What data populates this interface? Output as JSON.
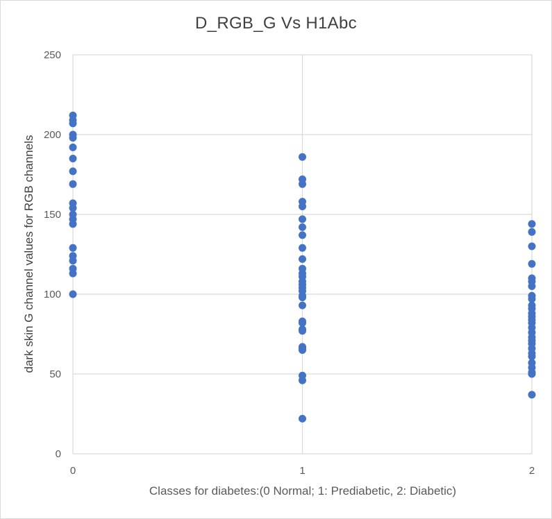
{
  "chart_data": {
    "type": "scatter",
    "title": "D_RGB_G Vs H1Abc",
    "xlabel": "Classes for diabetes:(0 Normal; 1: Prediabetic, 2: Diabetic)",
    "ylabel": "dark skin G channel values for RGB channels",
    "xlim": [
      0,
      2
    ],
    "ylim": [
      0,
      250
    ],
    "x_ticks": [
      "0",
      "1",
      "2"
    ],
    "y_ticks": [
      "0",
      "50",
      "100",
      "150",
      "200",
      "250"
    ],
    "grid": true,
    "legend": "none",
    "marker_color": "#4472c4",
    "series": [
      {
        "points": [
          [
            0,
            212
          ],
          [
            0,
            209
          ],
          [
            0,
            207
          ],
          [
            0,
            200
          ],
          [
            0,
            198
          ],
          [
            0,
            192
          ],
          [
            0,
            185
          ],
          [
            0,
            177
          ],
          [
            0,
            169
          ],
          [
            0,
            157
          ],
          [
            0,
            154
          ],
          [
            0,
            150
          ],
          [
            0,
            147
          ],
          [
            0,
            144
          ],
          [
            0,
            129
          ],
          [
            0,
            124
          ],
          [
            0,
            121
          ],
          [
            0,
            116
          ],
          [
            0,
            113
          ],
          [
            0,
            100
          ],
          [
            1,
            186
          ],
          [
            1,
            172
          ],
          [
            1,
            169
          ],
          [
            1,
            158
          ],
          [
            1,
            155
          ],
          [
            1,
            147
          ],
          [
            1,
            142
          ],
          [
            1,
            137
          ],
          [
            1,
            129
          ],
          [
            1,
            122
          ],
          [
            1,
            116
          ],
          [
            1,
            113
          ],
          [
            1,
            111
          ],
          [
            1,
            108
          ],
          [
            1,
            106
          ],
          [
            1,
            104
          ],
          [
            1,
            102
          ],
          [
            1,
            99
          ],
          [
            1,
            98
          ],
          [
            1,
            93
          ],
          [
            1,
            83
          ],
          [
            1,
            82
          ],
          [
            1,
            78
          ],
          [
            1,
            77
          ],
          [
            1,
            67
          ],
          [
            1,
            66
          ],
          [
            1,
            65
          ],
          [
            1,
            49
          ],
          [
            1,
            46
          ],
          [
            1,
            22
          ],
          [
            2,
            144
          ],
          [
            2,
            139
          ],
          [
            2,
            130
          ],
          [
            2,
            119
          ],
          [
            2,
            110
          ],
          [
            2,
            108
          ],
          [
            2,
            105
          ],
          [
            2,
            99
          ],
          [
            2,
            97
          ],
          [
            2,
            93
          ],
          [
            2,
            91
          ],
          [
            2,
            88
          ],
          [
            2,
            86
          ],
          [
            2,
            84
          ],
          [
            2,
            82
          ],
          [
            2,
            79
          ],
          [
            2,
            76
          ],
          [
            2,
            73
          ],
          [
            2,
            71
          ],
          [
            2,
            69
          ],
          [
            2,
            66
          ],
          [
            2,
            63
          ],
          [
            2,
            61
          ],
          [
            2,
            57
          ],
          [
            2,
            54
          ],
          [
            2,
            51
          ],
          [
            2,
            50
          ],
          [
            2,
            37
          ]
        ]
      }
    ]
  }
}
